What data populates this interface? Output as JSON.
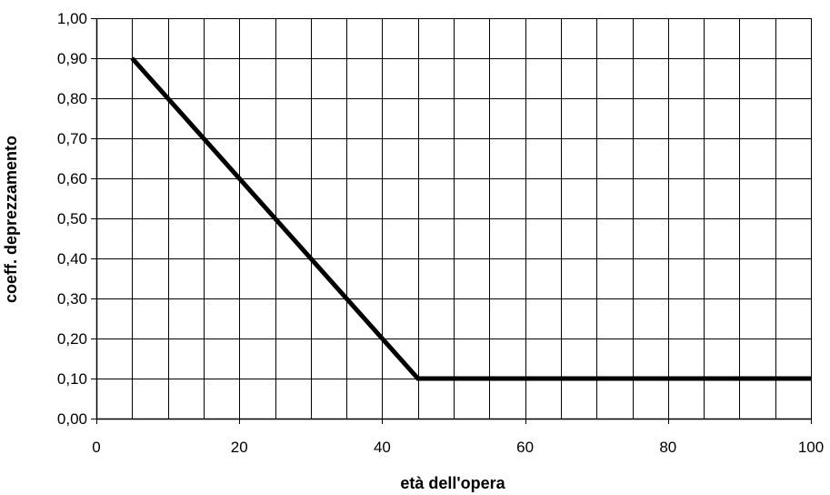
{
  "chart_data": {
    "type": "line",
    "title": "",
    "xlabel": "età dell'opera",
    "ylabel": "coeff. deprezzamento",
    "xlim": [
      0,
      100
    ],
    "ylim": [
      0,
      1
    ],
    "x_major_ticks": [
      0,
      20,
      40,
      60,
      80,
      100
    ],
    "x_tick_labels": [
      "0",
      "20",
      "40",
      "60",
      "80",
      "100"
    ],
    "x_minor_step": 5,
    "y_ticks": [
      0,
      0.1,
      0.2,
      0.3,
      0.4,
      0.5,
      0.6,
      0.7,
      0.8,
      0.9,
      1.0
    ],
    "y_tick_labels": [
      "0,00",
      "0,10",
      "0,20",
      "0,30",
      "0,40",
      "0,50",
      "0,60",
      "0,70",
      "0,80",
      "0,90",
      "1,00"
    ],
    "grid": true,
    "legend": "none",
    "series": [
      {
        "x": [
          5,
          45,
          100
        ],
        "y": [
          0.9,
          0.1,
          0.1
        ]
      }
    ],
    "colors": {
      "line": "#000000",
      "grid": "#000000",
      "background": "#ffffff"
    }
  }
}
